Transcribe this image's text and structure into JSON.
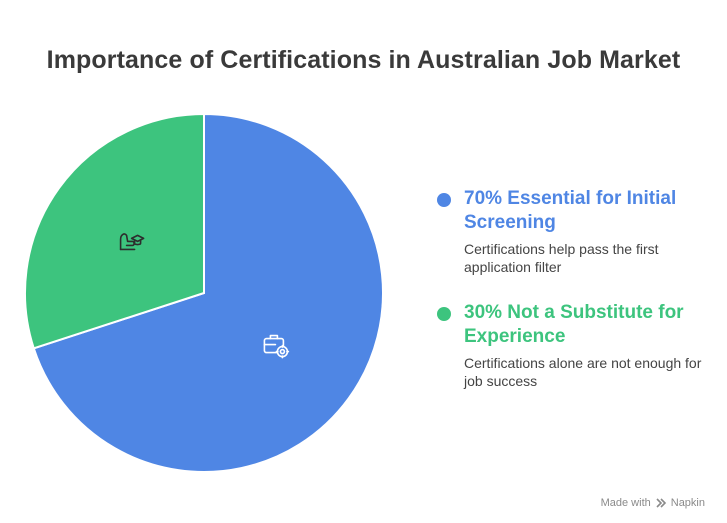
{
  "chart_data": {
    "type": "pie",
    "title": "Importance of Certifications in Australian Job Market",
    "series": [
      {
        "name": "70% Essential for Initial Screening",
        "value": 70,
        "color": "#4F86E4",
        "description": "Certifications help pass the first application filter",
        "icon": "briefcase-gear-icon"
      },
      {
        "name": "30% Not a Substitute for Experience",
        "value": 30,
        "color": "#3DC47E",
        "description": "Certifications alone are not enough for job success",
        "icon": "hand-graduation-cap-icon"
      }
    ]
  },
  "footer": {
    "made_with": "Made with",
    "brand": "Napkin"
  }
}
